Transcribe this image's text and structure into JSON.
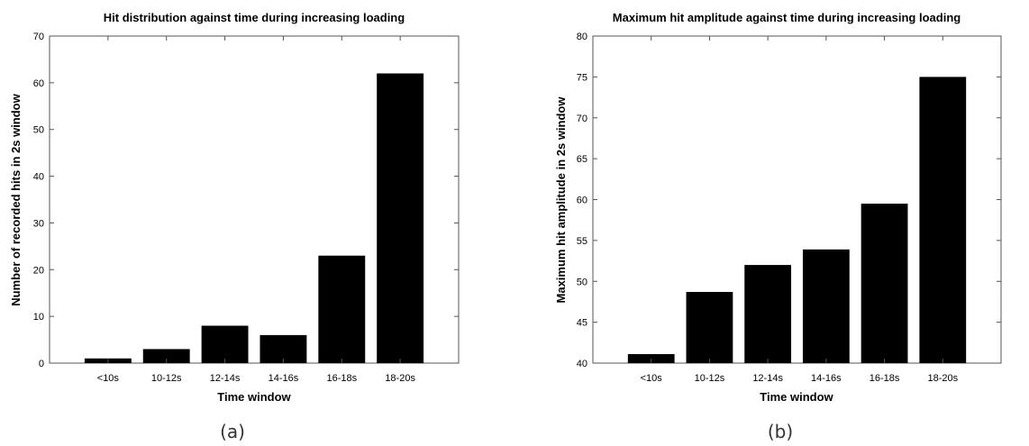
{
  "chart_data": [
    {
      "type": "bar",
      "title": "Hit distribution against time during increasing loading",
      "xlabel": "Time window",
      "ylabel": "Number of recorded hits in 2s window",
      "categories": [
        "<10s",
        "10-12s",
        "12-14s",
        "14-16s",
        "16-18s",
        "18-20s"
      ],
      "values": [
        1,
        3,
        8,
        6,
        23,
        62
      ],
      "ylim": [
        0,
        70
      ],
      "yticks": [
        0,
        10,
        20,
        30,
        40,
        50,
        60,
        70
      ],
      "bar_color": "#000000",
      "grid": false,
      "caption": "(a)"
    },
    {
      "type": "bar",
      "title": "Maximum hit amplitude against time during increasing loading",
      "xlabel": "Time window",
      "ylabel": "Maximum hit amplitude in 2s window",
      "categories": [
        "<10s",
        "10-12s",
        "12-14s",
        "14-16s",
        "16-18s",
        "18-20s"
      ],
      "values": [
        41.1,
        48.7,
        52,
        53.9,
        59.5,
        75
      ],
      "ylim": [
        40,
        80
      ],
      "yticks": [
        40,
        45,
        50,
        55,
        60,
        65,
        70,
        75,
        80
      ],
      "bar_color": "#000000",
      "grid": false,
      "caption": "(b)"
    }
  ]
}
